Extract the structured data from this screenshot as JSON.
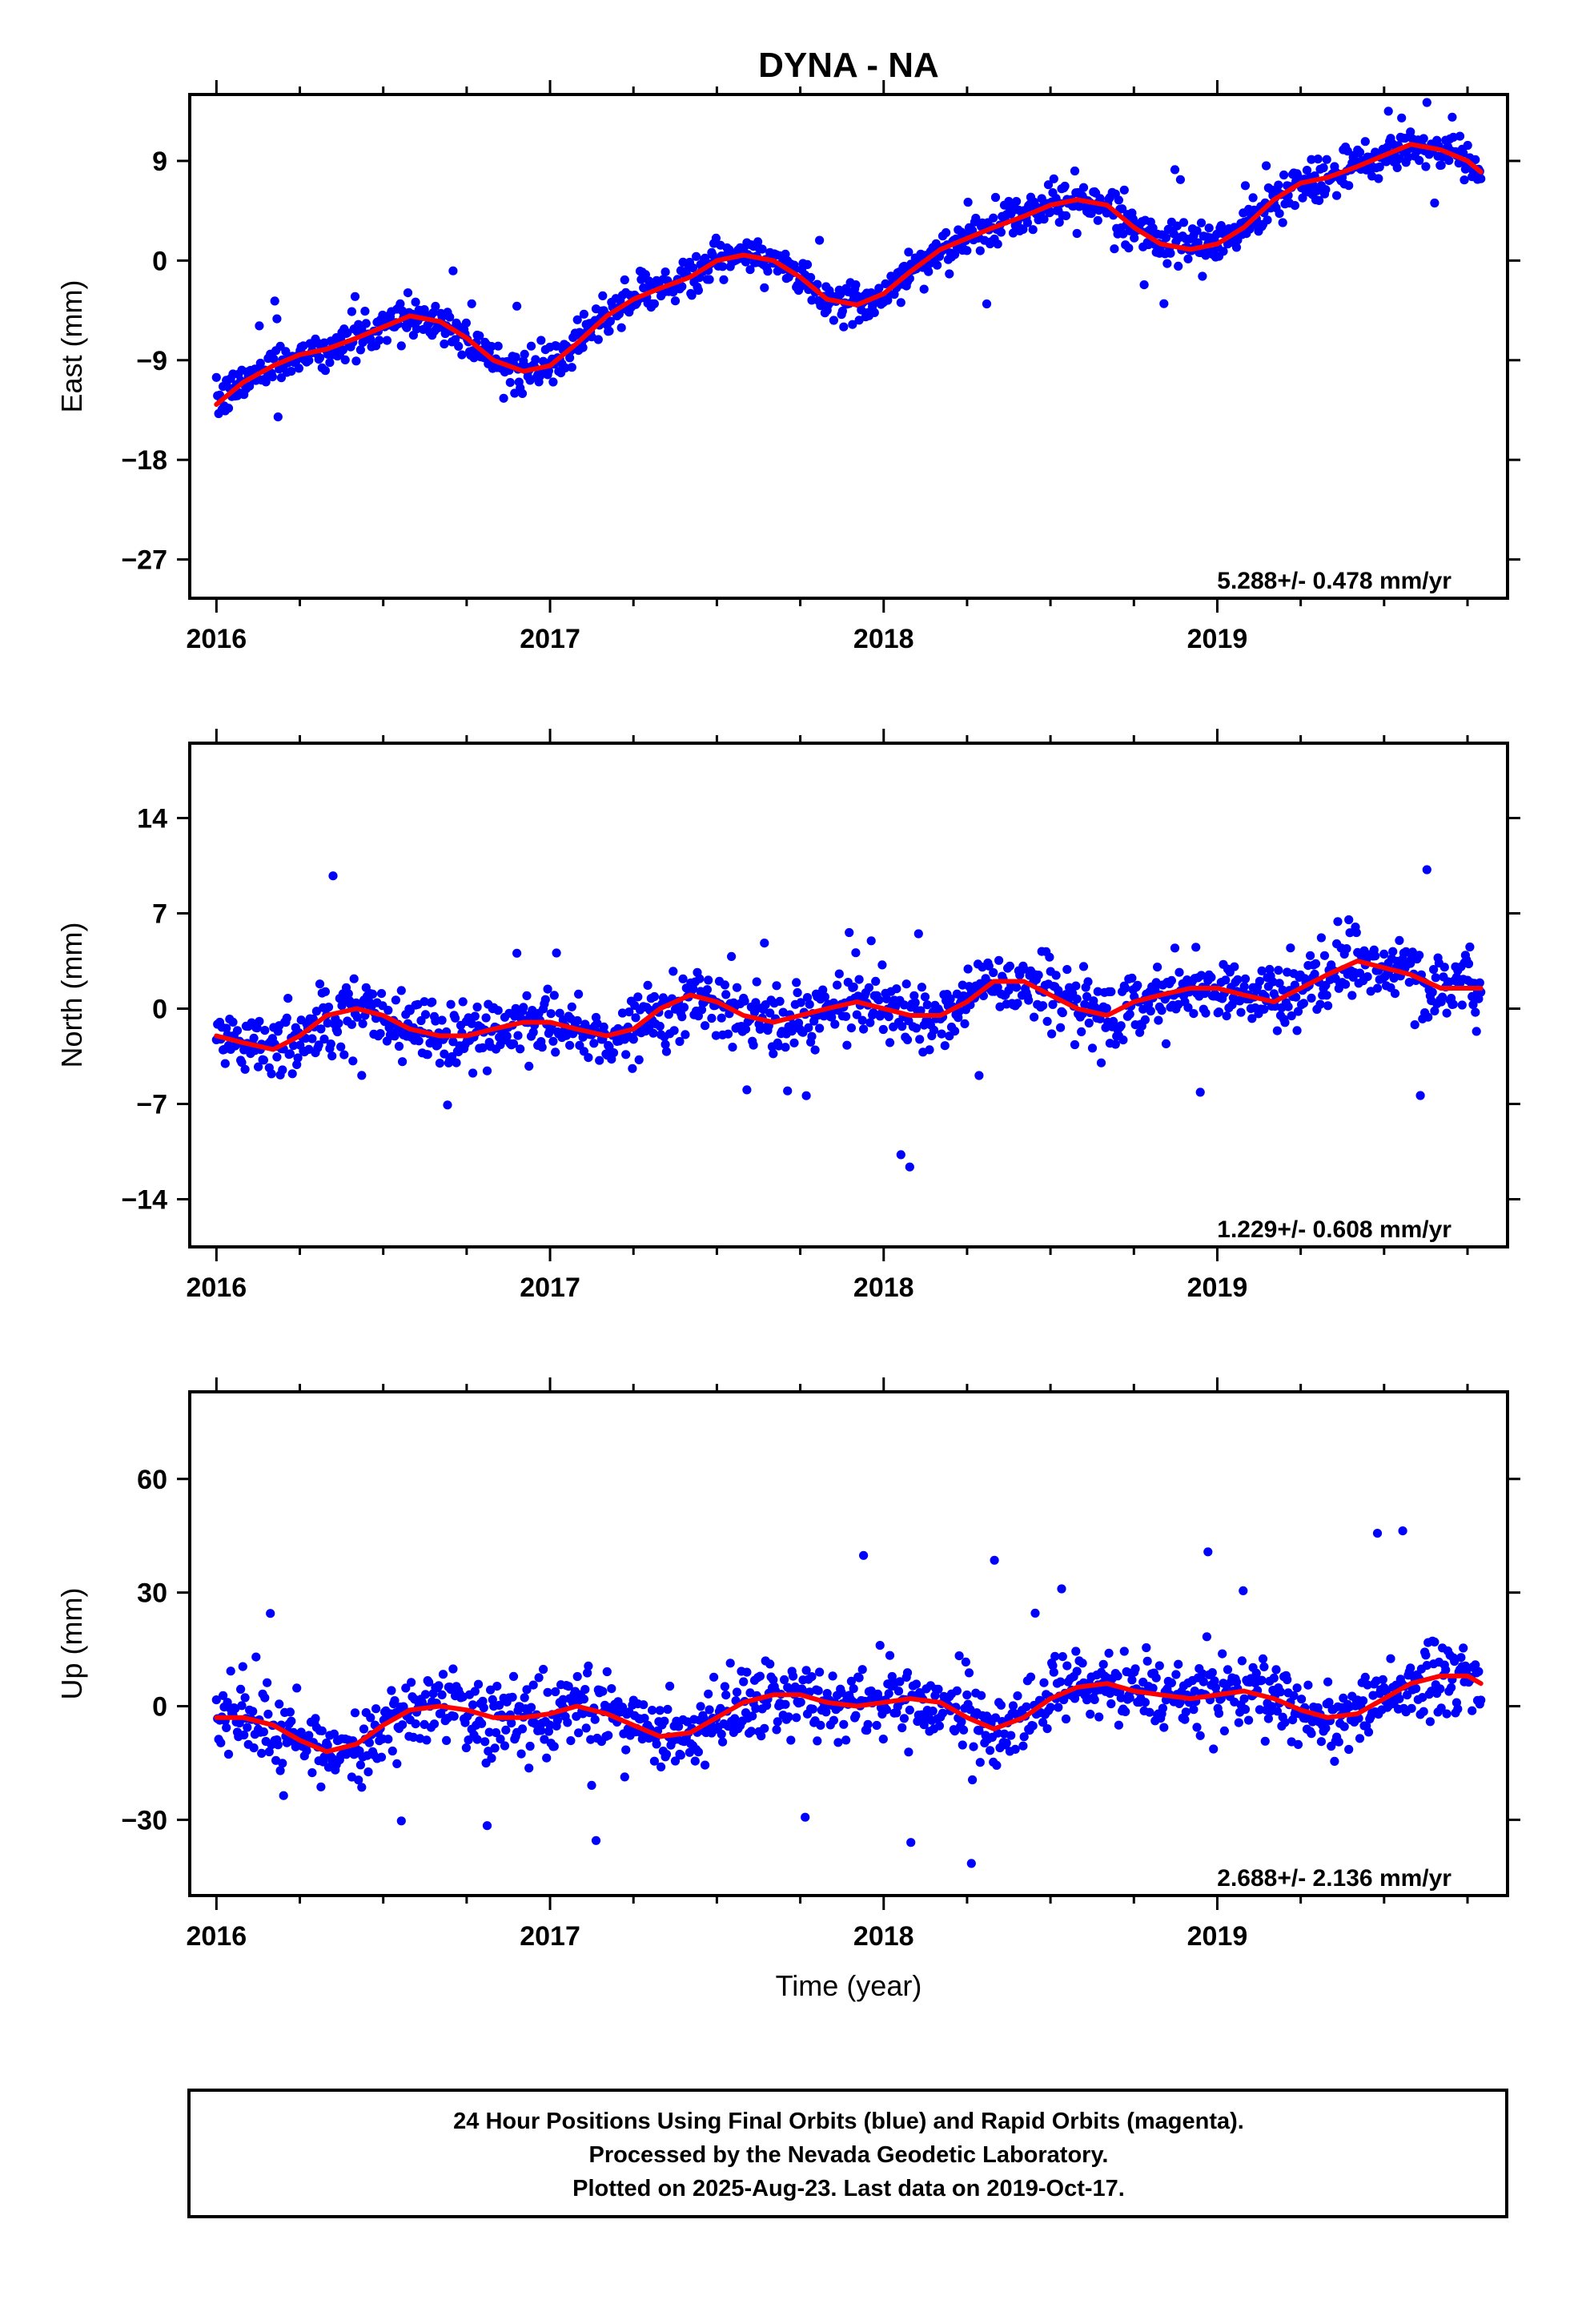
{
  "chart_data": [
    {
      "type": "scatter",
      "title": "DYNA - NA",
      "ylabel": "East (mm)",
      "xlabel": "",
      "xlim": [
        2015.92,
        2019.87
      ],
      "ylim": [
        -30.5,
        15
      ],
      "yticks": [
        9,
        0,
        -9,
        -18,
        -27
      ],
      "ytick_labels": [
        "9",
        "0",
        "−9",
        "−18",
        "−27"
      ],
      "xticks": [
        2016,
        2017,
        2018,
        2019
      ],
      "xtick_labels": [
        "2016",
        "2017",
        "2018",
        "2019"
      ],
      "rate_label": "5.288+/- 0.478 mm/yr",
      "grid": false,
      "series": [
        {
          "marker": "dot",
          "color": "#0000ff",
          "x": [
            2016.0,
            2016.08,
            2016.17,
            2016.25,
            2016.33,
            2016.42,
            2016.5,
            2016.58,
            2016.67,
            2016.75,
            2016.83,
            2016.92,
            2017.0,
            2017.08,
            2017.17,
            2017.25,
            2017.33,
            2017.42,
            2017.5,
            2017.58,
            2017.67,
            2017.75,
            2017.83,
            2017.92,
            2018.0,
            2018.08,
            2018.17,
            2018.25,
            2018.33,
            2018.42,
            2018.5,
            2018.58,
            2018.67,
            2018.75,
            2018.83,
            2018.92,
            2019.0,
            2019.08,
            2019.17,
            2019.25,
            2019.33,
            2019.42,
            2019.5,
            2019.58,
            2019.67,
            2019.75,
            2019.79
          ],
          "y": [
            -13,
            -11,
            -9.5,
            -8.5,
            -8,
            -7,
            -6,
            -5,
            -5.5,
            -7,
            -9,
            -10,
            -9.5,
            -7.5,
            -5,
            -3.5,
            -2.5,
            -1.5,
            0,
            0.5,
            0,
            -1.5,
            -3.5,
            -4,
            -3,
            -1,
            1,
            2,
            3,
            4,
            5,
            5.5,
            5,
            3,
            1.5,
            1,
            1.5,
            3,
            5.5,
            7,
            7.5,
            8.5,
            9.5,
            10.5,
            10,
            9,
            8
          ]
        },
        {
          "marker": "line",
          "color": "#ff0000",
          "x": [
            2016.0,
            2016.08,
            2016.17,
            2016.25,
            2016.33,
            2016.42,
            2016.5,
            2016.58,
            2016.67,
            2016.75,
            2016.83,
            2016.92,
            2017.0,
            2017.08,
            2017.17,
            2017.25,
            2017.33,
            2017.42,
            2017.5,
            2017.58,
            2017.67,
            2017.75,
            2017.83,
            2017.92,
            2018.0,
            2018.08,
            2018.17,
            2018.25,
            2018.33,
            2018.42,
            2018.5,
            2018.58,
            2018.67,
            2018.75,
            2018.83,
            2018.92,
            2019.0,
            2019.08,
            2019.17,
            2019.25,
            2019.33,
            2019.42,
            2019.5,
            2019.58,
            2019.67,
            2019.75,
            2019.79
          ],
          "y": [
            -13,
            -11,
            -9.5,
            -8.5,
            -8,
            -7,
            -6,
            -5,
            -5.5,
            -7,
            -9,
            -10,
            -9.5,
            -7.5,
            -5,
            -3.5,
            -2.5,
            -1.5,
            0,
            0.5,
            0,
            -1.5,
            -3.5,
            -4,
            -3,
            -1,
            1,
            2,
            3,
            4,
            5,
            5.5,
            5,
            3,
            1.5,
            1,
            1.5,
            3,
            5.5,
            7,
            7.5,
            8.5,
            9.5,
            10.5,
            10,
            9,
            8
          ]
        }
      ],
      "scatter_spread": 1.6
    },
    {
      "type": "scatter",
      "title": "",
      "ylabel": "North (mm)",
      "xlabel": "",
      "xlim": [
        2015.92,
        2019.87
      ],
      "ylim": [
        -17.5,
        19.5
      ],
      "yticks": [
        14,
        7,
        0,
        -7,
        -14
      ],
      "ytick_labels": [
        "14",
        "7",
        "0",
        "−7",
        "−14"
      ],
      "xticks": [
        2016,
        2017,
        2018,
        2019
      ],
      "xtick_labels": [
        "2016",
        "2017",
        "2018",
        "2019"
      ],
      "rate_label": "1.229+/- 0.608 mm/yr",
      "grid": false,
      "series": [
        {
          "marker": "dot",
          "color": "#0000ff",
          "x": [
            2016.0,
            2016.08,
            2016.17,
            2016.25,
            2016.33,
            2016.42,
            2016.5,
            2016.58,
            2016.67,
            2016.75,
            2016.83,
            2016.92,
            2017.0,
            2017.08,
            2017.17,
            2017.25,
            2017.33,
            2017.42,
            2017.5,
            2017.58,
            2017.67,
            2017.75,
            2017.83,
            2017.92,
            2018.0,
            2018.08,
            2018.17,
            2018.25,
            2018.33,
            2018.42,
            2018.5,
            2018.58,
            2018.67,
            2018.75,
            2018.83,
            2018.92,
            2019.0,
            2019.08,
            2019.17,
            2019.25,
            2019.33,
            2019.42,
            2019.5,
            2019.58,
            2019.67,
            2019.75,
            2019.79
          ],
          "y": [
            -2,
            -2.5,
            -3,
            -2,
            -0.5,
            0,
            -0.5,
            -1.5,
            -2,
            -2,
            -1.5,
            -1,
            -1,
            -1.5,
            -2,
            -1.5,
            0,
            1,
            0.5,
            -0.5,
            -1,
            -0.5,
            0,
            0.5,
            0,
            -0.5,
            -0.5,
            0.5,
            2,
            2,
            1,
            0,
            -0.5,
            0.5,
            1,
            1.5,
            1.5,
            1,
            0.5,
            1.5,
            2.5,
            3.5,
            3,
            2.5,
            1.5,
            1.5,
            1.5
          ]
        },
        {
          "marker": "line",
          "color": "#ff0000",
          "x": [
            2016.0,
            2016.08,
            2016.17,
            2016.25,
            2016.33,
            2016.42,
            2016.5,
            2016.58,
            2016.67,
            2016.75,
            2016.83,
            2016.92,
            2017.0,
            2017.08,
            2017.17,
            2017.25,
            2017.33,
            2017.42,
            2017.5,
            2017.58,
            2017.67,
            2017.75,
            2017.83,
            2017.92,
            2018.0,
            2018.08,
            2018.17,
            2018.25,
            2018.33,
            2018.42,
            2018.5,
            2018.58,
            2018.67,
            2018.75,
            2018.83,
            2018.92,
            2019.0,
            2019.08,
            2019.17,
            2019.25,
            2019.33,
            2019.42,
            2019.5,
            2019.58,
            2019.67,
            2019.75,
            2019.79
          ],
          "y": [
            -2,
            -2.5,
            -3,
            -2,
            -0.5,
            0,
            -0.5,
            -1.5,
            -2,
            -2,
            -1.5,
            -1,
            -1,
            -1.5,
            -2,
            -1.5,
            0,
            1,
            0.5,
            -0.5,
            -1,
            -0.5,
            0,
            0.5,
            0,
            -0.5,
            -0.5,
            0.5,
            2,
            2,
            1,
            0,
            -0.5,
            0.5,
            1,
            1.5,
            1.5,
            1,
            0.5,
            1.5,
            2.5,
            3.5,
            3,
            2.5,
            1.5,
            1.5,
            1.5
          ]
        }
      ],
      "scatter_spread": 2.2
    },
    {
      "type": "scatter",
      "title": "",
      "ylabel": "Up (mm)",
      "xlabel": "Time (year)",
      "xlim": [
        2015.92,
        2019.87
      ],
      "ylim": [
        -50,
        83
      ],
      "yticks": [
        60,
        30,
        0,
        -30
      ],
      "ytick_labels": [
        "60",
        "30",
        "0",
        "−30"
      ],
      "xticks": [
        2016,
        2017,
        2018,
        2019
      ],
      "xtick_labels": [
        "2016",
        "2017",
        "2018",
        "2019"
      ],
      "rate_label": "2.688+/- 2.136 mm/yr",
      "grid": false,
      "series": [
        {
          "marker": "dot",
          "color": "#0000ff",
          "x": [
            2016.0,
            2016.08,
            2016.17,
            2016.25,
            2016.33,
            2016.42,
            2016.5,
            2016.58,
            2016.67,
            2016.75,
            2016.83,
            2016.92,
            2017.0,
            2017.08,
            2017.17,
            2017.25,
            2017.33,
            2017.42,
            2017.5,
            2017.58,
            2017.67,
            2017.75,
            2017.83,
            2017.92,
            2018.0,
            2018.08,
            2018.17,
            2018.25,
            2018.33,
            2018.42,
            2018.5,
            2018.58,
            2018.67,
            2018.75,
            2018.83,
            2018.92,
            2019.0,
            2019.08,
            2019.17,
            2019.25,
            2019.33,
            2019.42,
            2019.5,
            2019.58,
            2019.67,
            2019.75,
            2019.79
          ],
          "y": [
            -3,
            -3,
            -5,
            -9,
            -12,
            -10,
            -5,
            -1,
            0,
            -1,
            -3,
            -3,
            -2,
            0,
            -2,
            -5,
            -8,
            -7,
            -3,
            1,
            3,
            3,
            1,
            0,
            1,
            2,
            1,
            -3,
            -6,
            -3,
            2,
            5,
            6,
            4,
            3,
            2,
            3,
            4,
            2,
            -1,
            -3,
            -2,
            2,
            6,
            8,
            8,
            6
          ]
        },
        {
          "marker": "line",
          "color": "#ff0000",
          "x": [
            2016.0,
            2016.08,
            2016.17,
            2016.25,
            2016.33,
            2016.42,
            2016.5,
            2016.58,
            2016.67,
            2016.75,
            2016.83,
            2016.92,
            2017.0,
            2017.08,
            2017.17,
            2017.25,
            2017.33,
            2017.42,
            2017.5,
            2017.58,
            2017.67,
            2017.75,
            2017.83,
            2017.92,
            2018.0,
            2018.08,
            2018.17,
            2018.25,
            2018.33,
            2018.42,
            2018.5,
            2018.58,
            2018.67,
            2018.75,
            2018.83,
            2018.92,
            2019.0,
            2019.08,
            2019.17,
            2019.25,
            2019.33,
            2019.42,
            2019.5,
            2019.58,
            2019.67,
            2019.75,
            2019.79
          ],
          "y": [
            -3,
            -3,
            -5,
            -9,
            -12,
            -10,
            -5,
            -1,
            0,
            -1,
            -3,
            -3,
            -2,
            0,
            -2,
            -5,
            -8,
            -7,
            -3,
            1,
            3,
            3,
            1,
            0,
            1,
            2,
            1,
            -3,
            -6,
            -3,
            2,
            5,
            6,
            4,
            3,
            2,
            3,
            4,
            2,
            -1,
            -3,
            -2,
            2,
            6,
            8,
            8,
            6
          ]
        }
      ],
      "scatter_spread": 8.5
    }
  ],
  "footer": {
    "line1": "24 Hour Positions Using Final Orbits (blue) and Rapid Orbits (magenta).",
    "line2": "Processed by the Nevada Geodetic Laboratory.",
    "line3": "Plotted on 2025-Aug-23. Last data on 2019-Oct-17."
  },
  "colors": {
    "points": "#0000ff",
    "fit_line": "#ff0000",
    "frame": "#000000"
  }
}
